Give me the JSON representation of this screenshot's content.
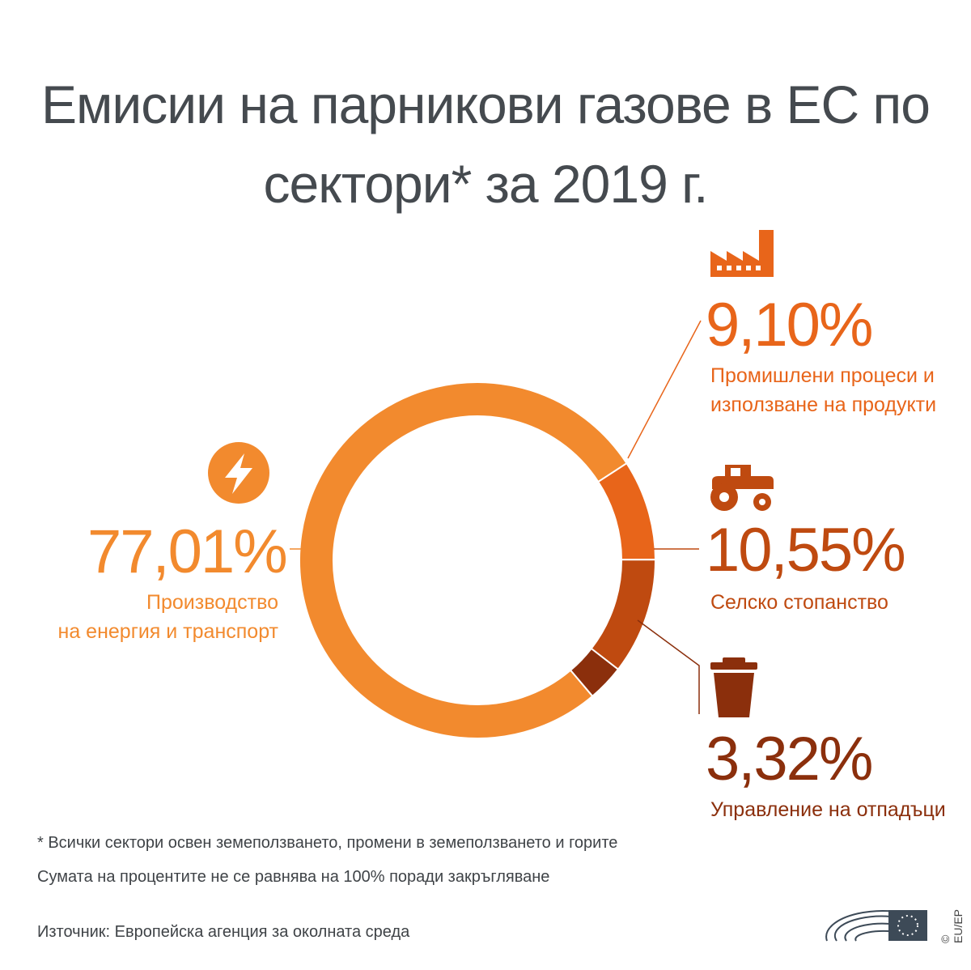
{
  "chart_data": {
    "type": "pie",
    "title_lines": [
      "Емисии на парникови газове в ЕС по",
      "сектори* за 2019 г."
    ],
    "slices": [
      {
        "value": 77.01,
        "label_pct": "77,01%",
        "label_lines": [
          "Производство",
          "на енергия и транспорт"
        ],
        "color": "#f28a2e",
        "icon": "lightning-icon"
      },
      {
        "value": 9.1,
        "label_pct": "9,10%",
        "label_lines": [
          "Промишлени процеси и",
          "използване на продукти"
        ],
        "color": "#e8651a",
        "icon": "factory-icon"
      },
      {
        "value": 10.55,
        "label_pct": "10,55%",
        "label_lines": [
          "Селско стопанство"
        ],
        "color": "#bf4a10",
        "icon": "tractor-icon"
      },
      {
        "value": 3.32,
        "label_pct": "3,32%",
        "label_lines": [
          "Управление на отпадъци"
        ],
        "color": "#8b2f0c",
        "icon": "trash-bin-icon"
      }
    ]
  },
  "footnotes": {
    "note1": "* Всички сектори освен земеползването, промени в земеползването и горите",
    "note2": "Сумата на процентите не се равнява на 100% поради закръгляване",
    "source": "Източник: Европейска агенция за околната среда"
  },
  "copyright": "© EU/EP",
  "logo": "european-parliament-logo-icon"
}
